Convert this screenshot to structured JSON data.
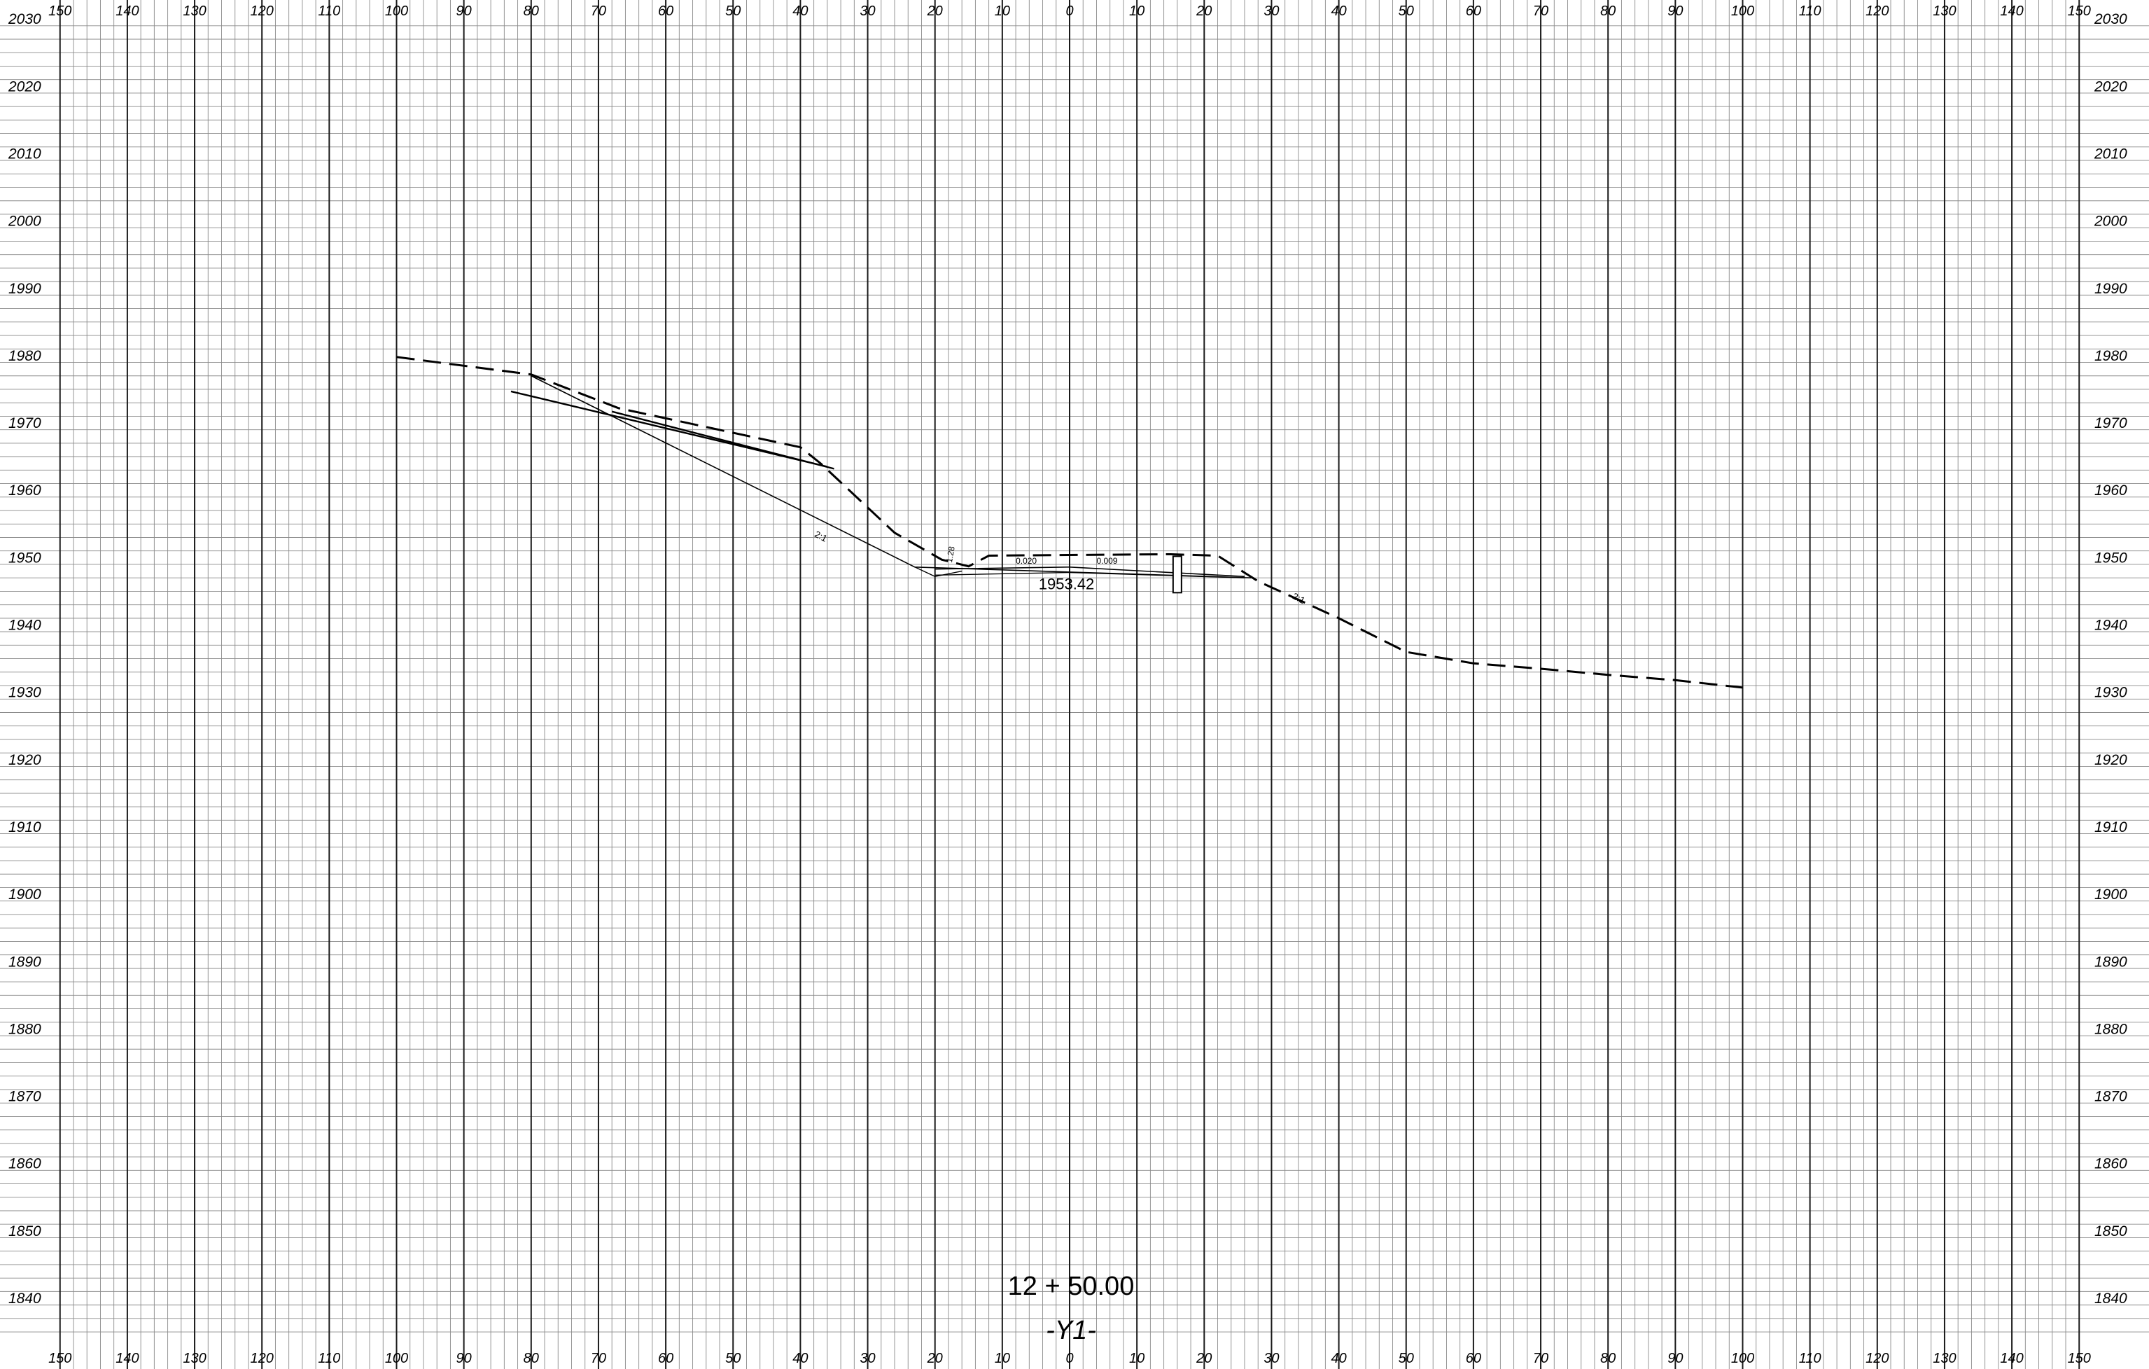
{
  "chart_data": {
    "type": "cross-section",
    "x_range": [
      -150,
      150
    ],
    "y_range": [
      1835,
      2030
    ],
    "grid": {
      "minor": 2,
      "major": 10
    },
    "x_ticks": [
      150,
      140,
      130,
      120,
      110,
      100,
      90,
      80,
      70,
      60,
      50,
      40,
      30,
      20,
      10,
      0,
      10,
      20,
      30,
      40,
      50,
      60,
      70,
      80,
      90,
      100,
      110,
      120,
      130,
      140,
      150
    ],
    "y_ticks": [
      2030,
      2020,
      2010,
      2000,
      1990,
      1980,
      1970,
      1960,
      1950,
      1940,
      1930,
      1920,
      1910,
      1900,
      1890,
      1880,
      1870,
      1860,
      1850,
      1840
    ],
    "existing_ground": [
      [
        -100,
        1979.8
      ],
      [
        -80,
        1977.2
      ],
      [
        -67,
        1972.2
      ],
      [
        -40,
        1966.4
      ],
      [
        -37,
        1964
      ],
      [
        -26,
        1953.7
      ],
      [
        -19,
        1949.7
      ],
      [
        -15,
        1948.7
      ],
      [
        -12,
        1950.3
      ],
      [
        0,
        1950.4
      ],
      [
        15,
        1950.5
      ],
      [
        22,
        1950.3
      ],
      [
        28,
        1946.5
      ],
      [
        40,
        1941
      ],
      [
        50,
        1936
      ],
      [
        60,
        1934.3
      ],
      [
        70,
        1933.5
      ],
      [
        80,
        1932.6
      ],
      [
        90,
        1931.8
      ],
      [
        100,
        1930.7
      ]
    ],
    "cut_slope": [
      [
        -80,
        1977
      ],
      [
        -23,
        1948.6
      ],
      [
        27,
        1947
      ]
    ],
    "road_surface": [
      [
        -20,
        1948.3
      ],
      [
        0,
        1948.6
      ],
      [
        26,
        1947.2
      ]
    ],
    "subgrade": [
      [
        -20,
        1947.4
      ],
      [
        0,
        1947.8
      ],
      [
        26,
        1947
      ]
    ],
    "ditch": [
      [
        -23,
        1948.6
      ],
      [
        -20,
        1947.2
      ],
      [
        -16,
        1948
      ]
    ],
    "layer_line_a": [
      [
        -83,
        1974.7
      ],
      [
        -36,
        1963.5
      ]
    ],
    "layer_line_b": [
      [
        -68,
        1971.7
      ],
      [
        -35,
        1963.2
      ]
    ],
    "post": {
      "x": 16,
      "top": 1950.2,
      "bottom": 1944.8
    },
    "labels": {
      "cut_slope_left": "2:1",
      "fill_slope_right": "2:1",
      "ditch_slope": "1.28",
      "cross_slope_left": "0.020",
      "cross_slope_right": "0.009",
      "grade_elevation": "1953.42"
    },
    "station": "12 + 50.00",
    "alignment": "-Y1-"
  }
}
